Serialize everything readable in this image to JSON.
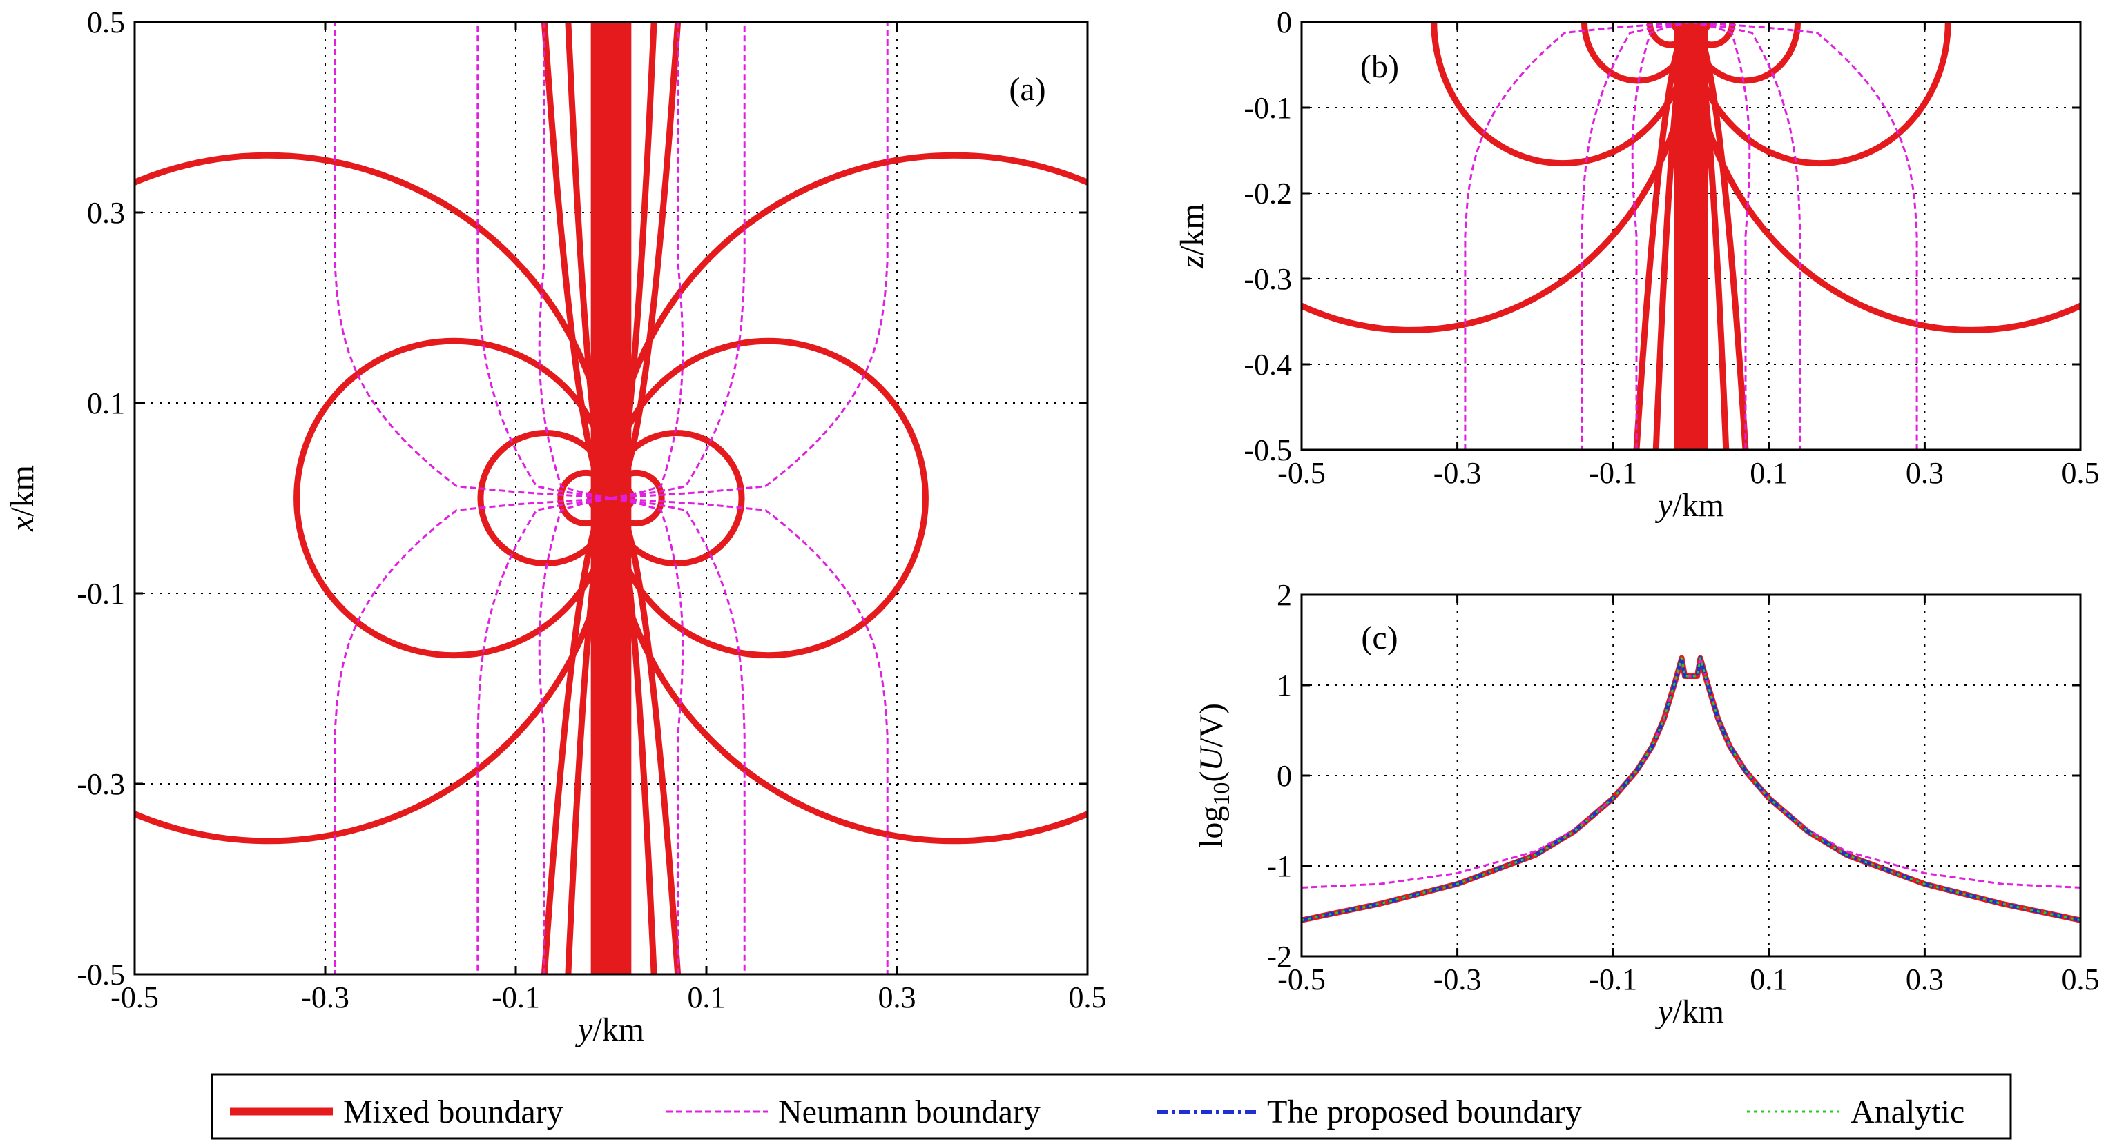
{
  "legend": [
    {
      "label": "Mixed boundary",
      "color": "#e41a1c",
      "style": "solid"
    },
    {
      "label": "Neumann boundary",
      "color": "#e020e0",
      "style": "dashed"
    },
    {
      "label": "The proposed boundary",
      "color": "#1f2fd0",
      "style": "dashdot"
    },
    {
      "label": "Analytic",
      "color": "#22cc22",
      "style": "dotted"
    }
  ],
  "chart_data": [
    {
      "panel_label": "(a)",
      "type": "line",
      "description_kind": "contour",
      "xlabel_italic": "y",
      "xlabel_unit": "/km",
      "ylabel_italic": "x",
      "ylabel_unit": "/km",
      "xlim": [
        -0.5,
        0.5
      ],
      "ylim": [
        -0.5,
        0.5
      ],
      "xticks": [
        -0.5,
        -0.3,
        -0.1,
        0.1,
        0.3,
        0.5
      ],
      "xtick_labels": [
        "-0.5",
        "-0.3",
        "-0.1",
        "0.1",
        "0.3",
        "0.5"
      ],
      "yticks": [
        -0.5,
        -0.3,
        -0.1,
        0.1,
        0.3,
        0.5
      ],
      "ytick_labels": [
        "-0.5",
        "-0.3",
        "-0.1",
        "0.1",
        "0.3",
        "0.5"
      ],
      "grid": true,
      "dipole_circles": [
        {
          "center_y": 0.36,
          "radius": 0.36
        },
        {
          "center_y": 0.165,
          "radius": 0.165
        },
        {
          "center_y": 0.0685,
          "radius": 0.0685
        },
        {
          "center_y": 0.0265,
          "radius": 0.0265
        },
        {
          "center_y": 0.011,
          "radius": 0.011
        }
      ],
      "neumann_curves": [
        {
          "y_center": 0.145,
          "y_outer": 0.29
        },
        {
          "y_center": 0.07,
          "y_outer": 0.14
        },
        {
          "y_center": 0.048,
          "y_outer": 0.07
        }
      ]
    },
    {
      "panel_label": "(b)",
      "type": "line",
      "description_kind": "contour",
      "xlabel_italic": "y",
      "xlabel_unit": "/km",
      "ylabel_italic": "z",
      "ylabel_unit": "/km",
      "xlim": [
        -0.5,
        0.5
      ],
      "ylim": [
        -0.5,
        0
      ],
      "xticks": [
        -0.5,
        -0.3,
        -0.1,
        0.1,
        0.3,
        0.5
      ],
      "xtick_labels": [
        "-0.5",
        "-0.3",
        "-0.1",
        "0.1",
        "0.3",
        "0.5"
      ],
      "yticks": [
        -0.5,
        -0.4,
        -0.3,
        -0.2,
        -0.1,
        0
      ],
      "ytick_labels": [
        "-0.5",
        "-0.4",
        "-0.3",
        "-0.2",
        "-0.1",
        "0"
      ],
      "grid": true,
      "dipole_circles": [
        {
          "center_y": 0.36,
          "radius": 0.36
        },
        {
          "center_y": 0.165,
          "radius": 0.165
        },
        {
          "center_y": 0.0685,
          "radius": 0.0685
        },
        {
          "center_y": 0.0265,
          "radius": 0.0265
        },
        {
          "center_y": 0.011,
          "radius": 0.011
        }
      ],
      "neumann_curves": [
        {
          "y_center": 0.145,
          "y_outer": 0.29
        },
        {
          "y_center": 0.07,
          "y_outer": 0.14
        },
        {
          "y_center": 0.048,
          "y_outer": 0.07
        }
      ]
    },
    {
      "panel_label": "(c)",
      "type": "line",
      "xlabel_italic": "y",
      "xlabel_unit": "/km",
      "ylabel_prefix": "log",
      "ylabel_sub": "10",
      "ylabel_open": "(",
      "ylabel_italic": "U",
      "ylabel_rest": "/V)",
      "xlim": [
        -0.5,
        0.5
      ],
      "ylim": [
        -2,
        2
      ],
      "xticks": [
        -0.5,
        -0.3,
        -0.1,
        0.1,
        0.3,
        0.5
      ],
      "xtick_labels": [
        "-0.5",
        "-0.3",
        "-0.1",
        "0.1",
        "0.3",
        "0.5"
      ],
      "yticks": [
        -2,
        -1,
        0,
        1,
        2
      ],
      "ytick_labels": [
        "-2",
        "-1",
        "0",
        "1",
        "2"
      ],
      "grid": true,
      "series": [
        {
          "name": "Mixed boundary",
          "x": [
            -0.5,
            -0.4,
            -0.3,
            -0.2,
            -0.15,
            -0.1,
            -0.07,
            -0.05,
            -0.035,
            -0.02,
            -0.012,
            -0.008,
            0.008,
            0.012,
            0.02,
            0.035,
            0.05,
            0.07,
            0.1,
            0.15,
            0.2,
            0.3,
            0.4,
            0.5
          ],
          "y": [
            -1.6,
            -1.42,
            -1.2,
            -0.88,
            -0.62,
            -0.25,
            0.05,
            0.32,
            0.62,
            1.05,
            1.3,
            1.1,
            1.1,
            1.3,
            1.05,
            0.62,
            0.32,
            0.05,
            -0.25,
            -0.62,
            -0.88,
            -1.2,
            -1.42,
            -1.6
          ]
        },
        {
          "name": "Neumann boundary",
          "x": [
            -0.5,
            -0.4,
            -0.3,
            -0.2,
            -0.15,
            -0.1,
            -0.07,
            -0.05,
            -0.035,
            -0.02,
            -0.012,
            -0.008,
            0.008,
            0.012,
            0.02,
            0.035,
            0.05,
            0.07,
            0.1,
            0.15,
            0.2,
            0.3,
            0.4,
            0.5
          ],
          "y": [
            -1.24,
            -1.2,
            -1.08,
            -0.84,
            -0.6,
            -0.25,
            0.05,
            0.32,
            0.62,
            1.05,
            1.3,
            1.1,
            1.1,
            1.3,
            1.05,
            0.62,
            0.32,
            0.05,
            -0.25,
            -0.6,
            -0.84,
            -1.08,
            -1.2,
            -1.24
          ]
        },
        {
          "name": "The proposed boundary",
          "x": [
            -0.5,
            -0.4,
            -0.3,
            -0.2,
            -0.15,
            -0.1,
            -0.07,
            -0.05,
            -0.035,
            -0.02,
            -0.012,
            -0.008,
            0.008,
            0.012,
            0.02,
            0.035,
            0.05,
            0.07,
            0.1,
            0.15,
            0.2,
            0.3,
            0.4,
            0.5
          ],
          "y": [
            -1.6,
            -1.42,
            -1.2,
            -0.88,
            -0.62,
            -0.25,
            0.05,
            0.32,
            0.62,
            1.05,
            1.3,
            1.1,
            1.1,
            1.3,
            1.05,
            0.62,
            0.32,
            0.05,
            -0.25,
            -0.62,
            -0.88,
            -1.2,
            -1.42,
            -1.6
          ]
        },
        {
          "name": "Analytic",
          "x": [
            -0.5,
            -0.4,
            -0.3,
            -0.2,
            -0.15,
            -0.1,
            -0.07,
            -0.05,
            -0.035,
            -0.02,
            -0.012,
            -0.008,
            0.008,
            0.012,
            0.02,
            0.035,
            0.05,
            0.07,
            0.1,
            0.15,
            0.2,
            0.3,
            0.4,
            0.5
          ],
          "y": [
            -1.6,
            -1.42,
            -1.2,
            -0.88,
            -0.62,
            -0.25,
            0.05,
            0.32,
            0.62,
            1.05,
            1.3,
            1.1,
            1.1,
            1.3,
            1.05,
            0.62,
            0.32,
            0.05,
            -0.25,
            -0.62,
            -0.88,
            -1.2,
            -1.42,
            -1.6
          ]
        }
      ]
    }
  ]
}
